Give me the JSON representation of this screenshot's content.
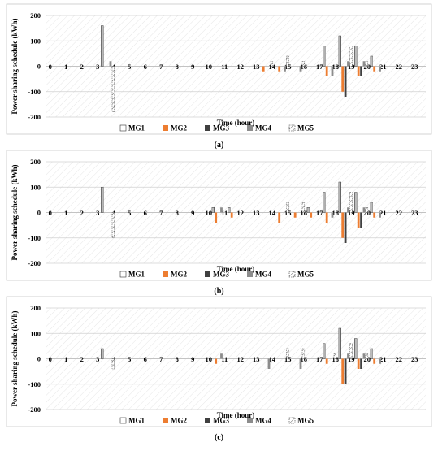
{
  "chart_data": [
    {
      "type": "bar",
      "panel_label": "(a)",
      "xlabel": "Time (hour)",
      "ylabel": "Power sharing schedule (kWh)",
      "ylim": [
        -200,
        200
      ],
      "yticks": [
        "200",
        "100",
        "0",
        "-100",
        "-200"
      ],
      "categories": [
        "0",
        "1",
        "2",
        "3",
        "4",
        "5",
        "6",
        "7",
        "8",
        "9",
        "10",
        "11",
        "12",
        "13",
        "14",
        "15",
        "16",
        "17",
        "18",
        "19",
        "20",
        "21",
        "22",
        "23"
      ],
      "grid": true,
      "legend_position": "bottom",
      "series": [
        {
          "name": "MG1",
          "values": [
            0,
            0,
            0,
            160,
            0,
            0,
            0,
            0,
            0,
            0,
            0,
            0,
            0,
            0,
            0,
            0,
            0,
            80,
            120,
            80,
            40,
            0,
            0,
            0
          ]
        },
        {
          "name": "MG2",
          "values": [
            0,
            0,
            0,
            0,
            0,
            0,
            0,
            0,
            0,
            0,
            0,
            0,
            0,
            -20,
            -20,
            0,
            0,
            -40,
            -100,
            -40,
            -20,
            0,
            0,
            0
          ]
        },
        {
          "name": "MG3",
          "values": [
            0,
            0,
            0,
            0,
            0,
            0,
            0,
            0,
            0,
            0,
            0,
            0,
            0,
            0,
            0,
            0,
            0,
            0,
            -120,
            -40,
            0,
            0,
            0,
            0
          ]
        },
        {
          "name": "MG4",
          "values": [
            0,
            0,
            0,
            20,
            0,
            0,
            0,
            0,
            0,
            0,
            0,
            0,
            0,
            0,
            -20,
            -20,
            0,
            -40,
            20,
            20,
            -20,
            0,
            0,
            0
          ]
        },
        {
          "name": "MG5",
          "values": [
            0,
            0,
            0,
            -180,
            0,
            0,
            0,
            0,
            0,
            0,
            0,
            0,
            0,
            20,
            40,
            20,
            0,
            0,
            80,
            20,
            0,
            0,
            0,
            0
          ]
        }
      ]
    },
    {
      "type": "bar",
      "panel_label": "(b)",
      "xlabel": "Time (hour)",
      "ylabel": "Power sharing schedule (kWh)",
      "ylim": [
        -200,
        200
      ],
      "yticks": [
        "200",
        "100",
        "0",
        "-100",
        "-200"
      ],
      "categories": [
        "0",
        "1",
        "2",
        "3",
        "4",
        "5",
        "6",
        "7",
        "8",
        "9",
        "10",
        "11",
        "12",
        "13",
        "14",
        "15",
        "16",
        "17",
        "18",
        "19",
        "20",
        "21",
        "22",
        "23"
      ],
      "grid": true,
      "legend_position": "bottom",
      "series": [
        {
          "name": "MG1",
          "values": [
            0,
            0,
            0,
            100,
            0,
            0,
            0,
            0,
            0,
            0,
            20,
            20,
            0,
            0,
            0,
            0,
            20,
            80,
            120,
            80,
            40,
            0,
            0,
            0
          ]
        },
        {
          "name": "MG2",
          "values": [
            0,
            0,
            0,
            0,
            0,
            0,
            0,
            0,
            0,
            0,
            -40,
            -20,
            0,
            0,
            -40,
            -20,
            -20,
            -40,
            -100,
            -60,
            -20,
            0,
            0,
            0
          ]
        },
        {
          "name": "MG3",
          "values": [
            0,
            0,
            0,
            0,
            0,
            0,
            0,
            0,
            0,
            0,
            0,
            0,
            0,
            0,
            0,
            0,
            0,
            0,
            -120,
            -60,
            0,
            0,
            0,
            0
          ]
        },
        {
          "name": "MG4",
          "values": [
            0,
            0,
            0,
            0,
            0,
            0,
            0,
            0,
            0,
            0,
            20,
            0,
            0,
            0,
            0,
            0,
            0,
            -20,
            20,
            20,
            -20,
            0,
            0,
            0
          ]
        },
        {
          "name": "MG5",
          "values": [
            0,
            0,
            0,
            -100,
            0,
            0,
            0,
            0,
            0,
            0,
            0,
            0,
            0,
            0,
            40,
            40,
            0,
            0,
            80,
            20,
            0,
            0,
            0,
            0
          ]
        }
      ]
    },
    {
      "type": "bar",
      "panel_label": "(c)",
      "xlabel": "Time (hour)",
      "ylabel": "Power sharing schedule (kWh)",
      "ylim": [
        -200,
        200
      ],
      "yticks": [
        "200",
        "100",
        "0",
        "-100",
        "-200"
      ],
      "categories": [
        "0",
        "1",
        "2",
        "3",
        "4",
        "5",
        "6",
        "7",
        "8",
        "9",
        "10",
        "11",
        "12",
        "13",
        "14",
        "15",
        "16",
        "17",
        "18",
        "19",
        "20",
        "21",
        "22",
        "23"
      ],
      "grid": true,
      "legend_position": "bottom",
      "series": [
        {
          "name": "MG1",
          "values": [
            0,
            0,
            0,
            40,
            0,
            0,
            0,
            0,
            0,
            0,
            0,
            0,
            0,
            0,
            0,
            0,
            0,
            60,
            120,
            80,
            40,
            0,
            0,
            0
          ]
        },
        {
          "name": "MG2",
          "values": [
            0,
            0,
            0,
            0,
            0,
            0,
            0,
            0,
            0,
            0,
            -20,
            0,
            0,
            0,
            0,
            0,
            0,
            -20,
            -100,
            -40,
            -20,
            0,
            0,
            0
          ]
        },
        {
          "name": "MG3",
          "values": [
            0,
            0,
            0,
            0,
            0,
            0,
            0,
            0,
            0,
            0,
            0,
            0,
            0,
            0,
            0,
            0,
            0,
            0,
            -100,
            -40,
            0,
            0,
            0,
            0
          ]
        },
        {
          "name": "MG4",
          "values": [
            0,
            0,
            0,
            0,
            0,
            0,
            0,
            0,
            0,
            0,
            20,
            0,
            0,
            -40,
            0,
            -40,
            0,
            0,
            20,
            20,
            -20,
            0,
            0,
            0
          ]
        },
        {
          "name": "MG5",
          "values": [
            0,
            0,
            0,
            -40,
            0,
            0,
            0,
            0,
            0,
            0,
            0,
            0,
            0,
            0,
            40,
            40,
            0,
            20,
            60,
            20,
            0,
            0,
            0,
            0
          ]
        }
      ]
    }
  ],
  "series_colors": {
    "MG1": "#ffffff",
    "MG2": "#ed7d31",
    "MG3": "#404040",
    "MG4": "#8c8c8c",
    "MG5": "#ffffff"
  }
}
